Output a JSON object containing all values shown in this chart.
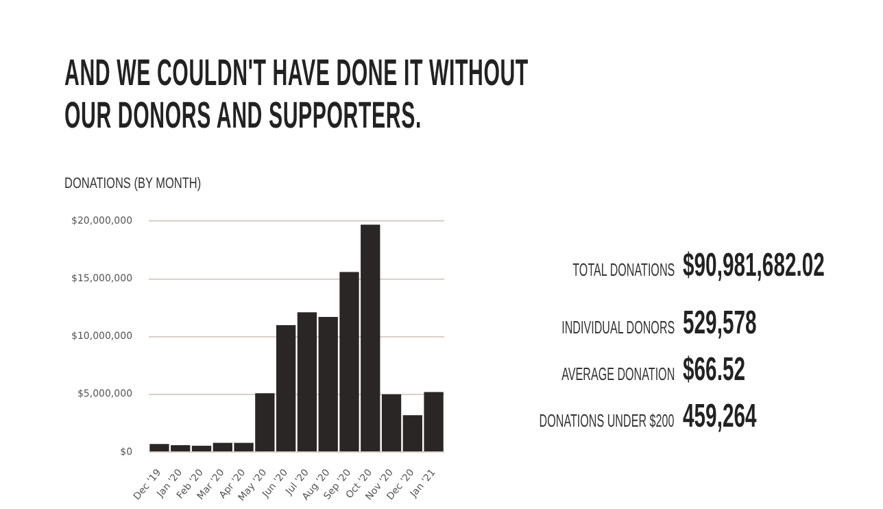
{
  "chart_data": [
    {
      "type": "bar",
      "title": "AND WE COULDN'T HAVE DONE IT WITHOUT OUR DONORS AND SUPPORTERS.",
      "subtitle": "DONATIONS (BY MONTH)",
      "categories": [
        "Dec '19",
        "Jan '20",
        "Feb '20",
        "Mar '20",
        "Apr '20",
        "May '20",
        "Jun '20",
        "Jul '20",
        "Aug '20",
        "Sep '20",
        "Oct '20",
        "Nov '20",
        "Dec '20",
        "Jan '21"
      ],
      "values": [
        700000,
        600000,
        550000,
        800000,
        800000,
        5100000,
        11000000,
        12100000,
        11700000,
        15600000,
        19700000,
        5000000,
        3200000,
        5200000
      ],
      "color": "#2b2626",
      "ylim": [
        0,
        20000000
      ],
      "yticks": [
        {
          "value": 0,
          "label": "$0"
        },
        {
          "value": 5000000,
          "label": "$5,000,000"
        },
        {
          "value": 10000000,
          "label": "$10,000,000"
        },
        {
          "value": 15000000,
          "label": "$15,000,000"
        },
        {
          "value": 20000000,
          "label": "$20,000,000"
        }
      ],
      "grid": "y",
      "legend": false
    },
    {
      "type": "other",
      "annotations": [
        "TOTAL DONATIONS",
        "$90,981,682.02",
        "INDIVIDUAL DONORS",
        "529,578",
        "AVERAGE DONATION",
        "$66.52",
        "DONATIONS UNDER $200",
        "459,264"
      ]
    }
  ]
}
